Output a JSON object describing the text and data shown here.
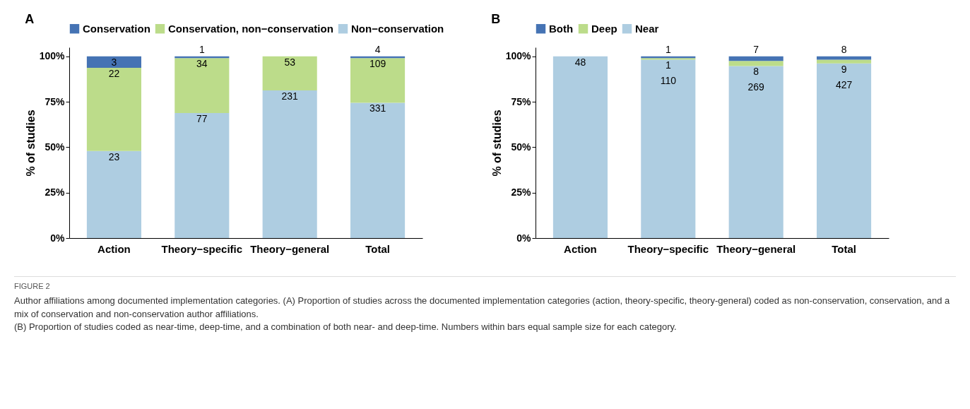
{
  "chart_data": [
    {
      "type": "bar",
      "title": "A",
      "stacked": true,
      "ylabel": "% of studies",
      "legend": "top",
      "grid": false,
      "categories": [
        "Action",
        "Theory−specific",
        "Theory−general",
        "Total"
      ],
      "ylim": [
        0,
        105
      ],
      "yticks": [
        {
          "value": 0,
          "label": "0%"
        },
        {
          "value": 25,
          "label": "25%"
        },
        {
          "value": 50,
          "label": "50%"
        },
        {
          "value": 75,
          "label": "75%"
        },
        {
          "value": 100,
          "label": "100%"
        }
      ],
      "series": [
        {
          "name": "Non−conservation",
          "color": "#aecde1",
          "values": [
            47.9,
            68.8,
            81.3,
            74.5
          ]
        },
        {
          "name": "Conservation, non−conservation",
          "color": "#bcdc8a",
          "values": [
            45.8,
            30.3,
            18.7,
            24.6
          ]
        },
        {
          "name": "Conservation",
          "color": "#4573b4",
          "values": [
            6.3,
            0.9,
            0,
            0.9
          ]
        }
      ],
      "annotations": [
        {
          "text": "23",
          "x": "Action",
          "y": 47.9
        },
        {
          "text": "22",
          "x": "Action",
          "y": 93.7
        },
        {
          "text": "3",
          "x": "Action",
          "y": 100
        },
        {
          "text": "77",
          "x": "Theory−specific",
          "y": 68.8
        },
        {
          "text": "34",
          "x": "Theory−specific",
          "y": 99.1
        },
        {
          "text": "1",
          "x": "Theory−specific",
          "y": 100
        },
        {
          "text": "231",
          "x": "Theory−general",
          "y": 81.3
        },
        {
          "text": "53",
          "x": "Theory−general",
          "y": 100
        },
        {
          "text": "331",
          "x": "Total",
          "y": 74.5
        },
        {
          "text": "109",
          "x": "Total",
          "y": 99.1
        },
        {
          "text": "4",
          "x": "Total",
          "y": 100
        }
      ]
    },
    {
      "type": "bar",
      "title": "B",
      "stacked": true,
      "ylabel": "% of studies",
      "legend": "top",
      "grid": false,
      "categories": [
        "Action",
        "Theory−specific",
        "Theory−general",
        "Total"
      ],
      "ylim": [
        0,
        105
      ],
      "yticks": [
        {
          "value": 0,
          "label": "0%"
        },
        {
          "value": 25,
          "label": "25%"
        },
        {
          "value": 50,
          "label": "50%"
        },
        {
          "value": 75,
          "label": "75%"
        },
        {
          "value": 100,
          "label": "100%"
        }
      ],
      "series": [
        {
          "name": "Near",
          "color": "#aecde1",
          "values": [
            100,
            98.2,
            94.7,
            96.2
          ]
        },
        {
          "name": "Deep",
          "color": "#bcdc8a",
          "values": [
            0,
            0.9,
            2.8,
            2.0
          ]
        },
        {
          "name": "Both",
          "color": "#4573b4",
          "values": [
            0,
            0.9,
            2.5,
            1.8
          ]
        }
      ],
      "annotations": [
        {
          "text": "48",
          "x": "Action",
          "y": 100
        },
        {
          "text": "110",
          "x": "Theory−specific",
          "y": 98.2
        },
        {
          "text": "1",
          "x": "Theory−specific",
          "y": 99.1
        },
        {
          "text": "1",
          "x": "Theory−specific",
          "y": 100
        },
        {
          "text": "269",
          "x": "Theory−general",
          "y": 94.7
        },
        {
          "text": "8",
          "x": "Theory−general",
          "y": 97.5
        },
        {
          "text": "7",
          "x": "Theory−general",
          "y": 100
        },
        {
          "text": "427",
          "x": "Total",
          "y": 96.2
        },
        {
          "text": "9",
          "x": "Total",
          "y": 98.2
        },
        {
          "text": "8",
          "x": "Total",
          "y": 100
        },
        "FIGURE 2",
        "Author affiliations among documented implementation categories. (A) Proportion of studies across the documented implementation categories (action, theory-specific, theory-general) coded as non-conservation, conservation, and a mix of conservation and non-conservation author affiliations.",
        "(B) Proportion of studies coded as near-time, deep-time, and a combination of both near- and deep-time. Numbers within bars equal sample size for each category."
      ]
    }
  ]
}
